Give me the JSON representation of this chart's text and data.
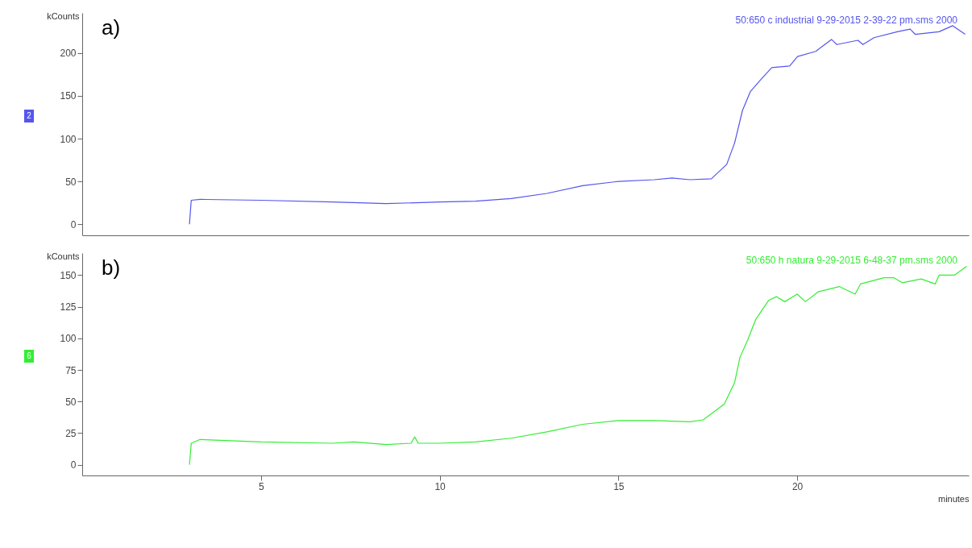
{
  "chart_data": [
    {
      "type": "line",
      "ylabel": "kCounts",
      "annotations": [
        "a)",
        "2"
      ],
      "xlim": [
        0,
        24.8
      ],
      "ylim": [
        -13,
        247
      ],
      "yticks": [
        0,
        50,
        100,
        150,
        200
      ],
      "tick_labels": "y",
      "grid": false,
      "series": [
        {
          "name": "50:650 c industrial  9-29-2015   2-39-22 pm.sms 2000",
          "color": "#5555ee",
          "x": [
            3.0,
            3.05,
            3.3,
            5,
            7,
            8.5,
            10,
            11,
            12,
            13,
            14,
            15,
            16,
            16.5,
            17,
            17.6,
            18.03,
            18.25,
            18.47,
            18.69,
            18.98,
            19.29,
            19.79,
            20.01,
            20.52,
            20.96,
            21.11,
            21.7,
            21.84,
            22.15,
            22.8,
            23.16,
            23.3,
            23.97,
            24.35,
            24.7
          ],
          "values": [
            0,
            28,
            29,
            28,
            26,
            24,
            26,
            27,
            30,
            36,
            45,
            50,
            52,
            54,
            52,
            53,
            70,
            95,
            133,
            155,
            169,
            183,
            185,
            196,
            202,
            216,
            210,
            215,
            210,
            218,
            225,
            228,
            222,
            225,
            232,
            222
          ]
        }
      ]
    },
    {
      "type": "line",
      "ylabel": "kCounts",
      "xlabel": "minutes",
      "annotations": [
        "b)",
        "6"
      ],
      "xlim": [
        0,
        24.8
      ],
      "xticks": [
        5,
        10,
        15,
        20
      ],
      "ylim": [
        -8.5,
        167.5
      ],
      "yticks": [
        0,
        25,
        50,
        75,
        100,
        125,
        150
      ],
      "grid": false,
      "series": [
        {
          "name": "50:650 h natura  9-29-2015   6-48-37 pm.sms 2000",
          "color": "#33ee33",
          "x": [
            3.0,
            3.05,
            3.3,
            5,
            7,
            7.6,
            8.5,
            9.2,
            9.3,
            9.4,
            10,
            11,
            12,
            13,
            14,
            15,
            16,
            17,
            17.37,
            17.96,
            18.25,
            18.4,
            18.62,
            18.84,
            19.2,
            19.42,
            19.65,
            20.0,
            20.23,
            20.6,
            21.18,
            21.62,
            21.77,
            22.43,
            22.7,
            22.94,
            23.47,
            23.86,
            23.97,
            24.4,
            24.74
          ],
          "values": [
            0,
            17,
            20,
            18,
            17,
            18,
            16,
            17,
            22,
            17,
            17,
            18,
            21,
            26,
            32,
            35,
            35,
            34,
            35.5,
            48,
            65,
            85,
            99,
            115,
            130,
            133,
            129,
            135,
            129,
            137,
            141,
            135,
            143,
            148,
            148,
            144,
            147,
            143,
            150,
            150,
            157
          ]
        }
      ]
    }
  ]
}
